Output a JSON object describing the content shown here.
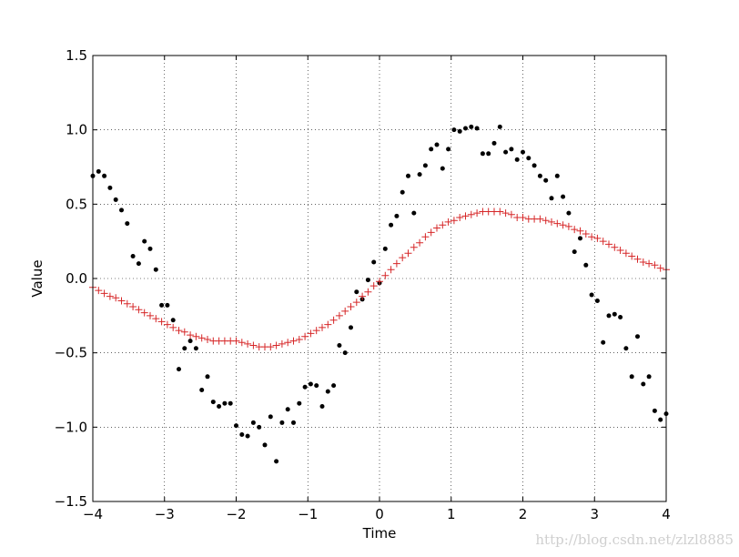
{
  "chart_data": {
    "type": "scatter",
    "title": "",
    "xlabel": "Time",
    "ylabel": "Value",
    "xlim": [
      -4,
      4
    ],
    "ylim": [
      -1.5,
      1.5
    ],
    "xticks": [
      -4,
      -3,
      -2,
      -1,
      0,
      1,
      2,
      3,
      4
    ],
    "yticks": [
      -1.5,
      -1.0,
      -0.5,
      0.0,
      0.5,
      1.0,
      1.5
    ],
    "grid": true,
    "series": [
      {
        "marker": "dot",
        "color": "#000000",
        "x": [
          -4.0,
          -3.92,
          -3.84,
          -3.76,
          -3.68,
          -3.6,
          -3.52,
          -3.44,
          -3.36,
          -3.28,
          -3.2,
          -3.12,
          -3.04,
          -2.96,
          -2.88,
          -2.8,
          -2.72,
          -2.64,
          -2.56,
          -2.48,
          -2.4,
          -2.32,
          -2.24,
          -2.16,
          -2.08,
          -2.0,
          -1.92,
          -1.84,
          -1.76,
          -1.68,
          -1.6,
          -1.52,
          -1.44,
          -1.36,
          -1.28,
          -1.2,
          -1.12,
          -1.04,
          -0.96,
          -0.88,
          -0.8,
          -0.72,
          -0.64,
          -0.56,
          -0.48,
          -0.4,
          -0.32,
          -0.24,
          -0.16,
          -0.08,
          0.0,
          0.08,
          0.16,
          0.24,
          0.32,
          0.4,
          0.48,
          0.56,
          0.64,
          0.72,
          0.8,
          0.88,
          0.96,
          1.04,
          1.12,
          1.2,
          1.28,
          1.36,
          1.44,
          1.52,
          1.6,
          1.68,
          1.76,
          1.84,
          1.92,
          2.0,
          2.08,
          2.16,
          2.24,
          2.32,
          2.4,
          2.48,
          2.56,
          2.64,
          2.72,
          2.8,
          2.88,
          2.96,
          3.04,
          3.12,
          3.2,
          3.28,
          3.36,
          3.44,
          3.52,
          3.6,
          3.68,
          3.76,
          3.84,
          3.92,
          4.0
        ],
        "y": [
          0.69,
          0.72,
          0.69,
          0.61,
          0.53,
          0.46,
          0.37,
          0.15,
          0.1,
          0.25,
          0.2,
          0.06,
          -0.18,
          -0.18,
          -0.28,
          -0.61,
          -0.47,
          -0.42,
          -0.47,
          -0.75,
          -0.66,
          -0.83,
          -0.86,
          -0.84,
          -0.84,
          -0.99,
          -1.05,
          -1.06,
          -0.97,
          -1.0,
          -1.12,
          -0.93,
          -1.23,
          -0.97,
          -0.88,
          -0.97,
          -0.84,
          -0.73,
          -0.71,
          -0.72,
          -0.86,
          -0.76,
          -0.72,
          -0.45,
          -0.5,
          -0.33,
          -0.09,
          -0.14,
          -0.01,
          0.11,
          -0.03,
          0.2,
          0.36,
          0.42,
          0.58,
          0.69,
          0.44,
          0.7,
          0.76,
          0.87,
          0.9,
          0.74,
          0.87,
          1.0,
          0.99,
          1.01,
          1.02,
          1.01,
          0.84,
          0.84,
          0.91,
          1.02,
          0.85,
          0.87,
          0.8,
          0.85,
          0.81,
          0.76,
          0.69,
          0.66,
          0.54,
          0.69,
          0.55,
          0.44,
          0.18,
          0.27,
          0.09,
          -0.11,
          -0.15,
          -0.43,
          -0.25,
          -0.24,
          -0.26,
          -0.47,
          -0.66,
          -0.39,
          -0.71,
          -0.66,
          -0.89,
          -0.95,
          -0.91
        ]
      },
      {
        "marker": "plus",
        "color": "#d62728",
        "x": [
          -4.0,
          -3.92,
          -3.84,
          -3.76,
          -3.68,
          -3.6,
          -3.52,
          -3.44,
          -3.36,
          -3.28,
          -3.2,
          -3.12,
          -3.04,
          -2.96,
          -2.88,
          -2.8,
          -2.72,
          -2.64,
          -2.56,
          -2.48,
          -2.4,
          -2.32,
          -2.24,
          -2.16,
          -2.08,
          -2.0,
          -1.92,
          -1.84,
          -1.76,
          -1.68,
          -1.6,
          -1.52,
          -1.44,
          -1.36,
          -1.28,
          -1.2,
          -1.12,
          -1.04,
          -0.96,
          -0.88,
          -0.8,
          -0.72,
          -0.64,
          -0.56,
          -0.48,
          -0.4,
          -0.32,
          -0.24,
          -0.16,
          -0.08,
          0.0,
          0.08,
          0.16,
          0.24,
          0.32,
          0.4,
          0.48,
          0.56,
          0.64,
          0.72,
          0.8,
          0.88,
          0.96,
          1.04,
          1.12,
          1.2,
          1.28,
          1.36,
          1.44,
          1.52,
          1.6,
          1.68,
          1.76,
          1.84,
          1.92,
          2.0,
          2.08,
          2.16,
          2.24,
          2.32,
          2.4,
          2.48,
          2.56,
          2.64,
          2.72,
          2.8,
          2.88,
          2.96,
          3.04,
          3.12,
          3.2,
          3.28,
          3.36,
          3.44,
          3.52,
          3.6,
          3.68,
          3.76,
          3.84,
          3.92,
          4.0
        ],
        "y": [
          -0.06,
          -0.08,
          -0.1,
          -0.12,
          -0.13,
          -0.15,
          -0.17,
          -0.19,
          -0.21,
          -0.23,
          -0.25,
          -0.27,
          -0.29,
          -0.31,
          -0.33,
          -0.35,
          -0.36,
          -0.38,
          -0.39,
          -0.4,
          -0.41,
          -0.42,
          -0.42,
          -0.42,
          -0.42,
          -0.42,
          -0.43,
          -0.44,
          -0.45,
          -0.46,
          -0.46,
          -0.46,
          -0.45,
          -0.44,
          -0.43,
          -0.42,
          -0.41,
          -0.39,
          -0.37,
          -0.35,
          -0.33,
          -0.31,
          -0.28,
          -0.25,
          -0.22,
          -0.19,
          -0.16,
          -0.12,
          -0.09,
          -0.05,
          -0.02,
          0.02,
          0.06,
          0.1,
          0.14,
          0.17,
          0.21,
          0.24,
          0.28,
          0.31,
          0.34,
          0.36,
          0.38,
          0.39,
          0.41,
          0.42,
          0.43,
          0.44,
          0.45,
          0.45,
          0.45,
          0.45,
          0.44,
          0.43,
          0.41,
          0.41,
          0.4,
          0.4,
          0.4,
          0.39,
          0.38,
          0.37,
          0.36,
          0.35,
          0.33,
          0.32,
          0.3,
          0.28,
          0.27,
          0.25,
          0.23,
          0.21,
          0.19,
          0.17,
          0.15,
          0.13,
          0.11,
          0.1,
          0.09,
          0.07,
          0.06
        ]
      }
    ]
  },
  "watermark": "http://blog.csdn.net/zlzl8885"
}
